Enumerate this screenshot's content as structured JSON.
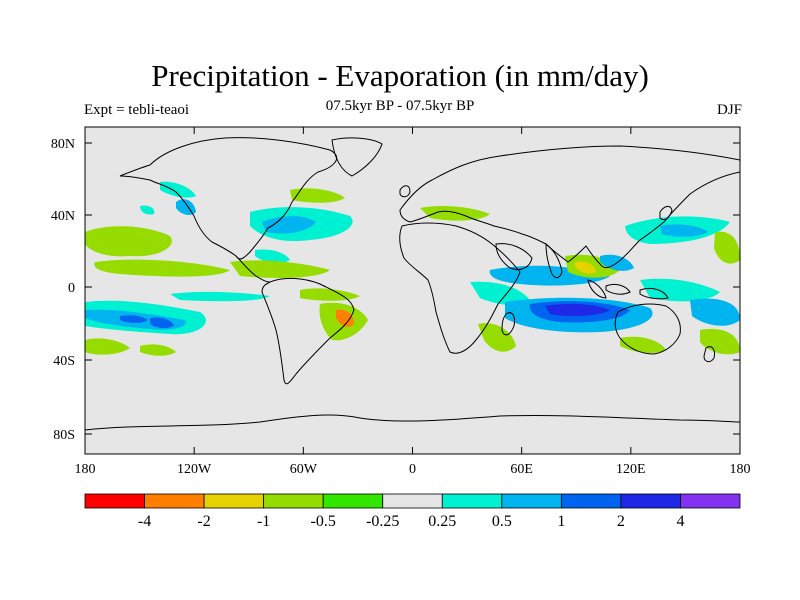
{
  "header": {
    "title": "Precipitation - Evaporation (in mm/day)",
    "subtitle": "07.5kyr BP - 07.5kyr BP",
    "left_label": "Expt = tebli-teaoi",
    "right_label": "DJF"
  },
  "map": {
    "land_color": "#e6e6e6",
    "coastline_color": "#000000",
    "lon_ticks": [
      "180",
      "120W",
      "60W",
      "0",
      "60E",
      "120E",
      "180"
    ],
    "lat_ticks": [
      "80N",
      "40N",
      "0",
      "40S",
      "80S"
    ]
  },
  "colorbar": {
    "colors": [
      "#ff0000",
      "#ff8000",
      "#e6d200",
      "#96dc00",
      "#32e600",
      "#e6e6e6",
      "#00f0d2",
      "#00b4f0",
      "#0064f0",
      "#1e28e6",
      "#8232f0"
    ],
    "labels": [
      "-4",
      "-2",
      "-1",
      "-0.5",
      "-0.25",
      "0.25",
      "0.5",
      "1",
      "2",
      "4"
    ]
  }
}
